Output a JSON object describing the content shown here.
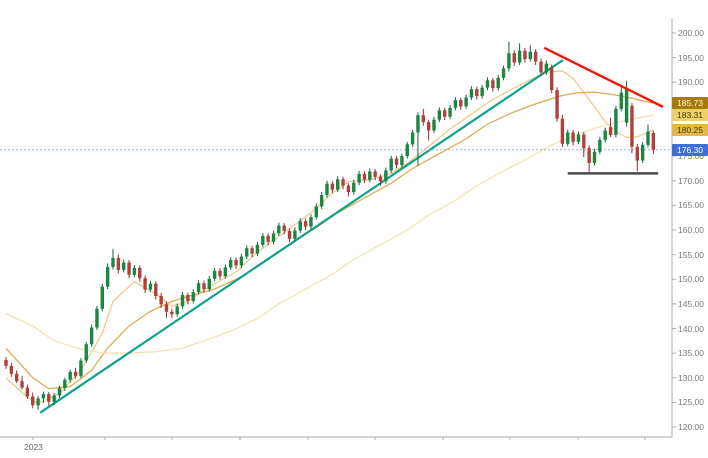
{
  "chart_data": {
    "type": "candlestick",
    "title": "",
    "x_axis": {
      "year_label": "2023"
    },
    "y_axis": {
      "min": 120,
      "max": 200,
      "step": 5,
      "tick_labels": [
        "200.00",
        "195.00",
        "190.00",
        "185.00",
        "180.00",
        "175.00",
        "170.00",
        "165.00",
        "160.00",
        "155.00",
        "150.00",
        "145.00",
        "140.00",
        "135.00",
        "130.00",
        "125.00",
        "120.00"
      ]
    },
    "grid": "off",
    "legend": "none",
    "price_labels": [
      {
        "name": "ma-mid-price-label",
        "value": "185.73",
        "price": 185.73,
        "bg": "#A8790B",
        "fg": "#FFF6E0"
      },
      {
        "name": "ma-slow-price-label",
        "value": "183.31",
        "price": 183.31,
        "bg": "#EDD068",
        "fg": "#4A3A08"
      },
      {
        "name": "ma-fast-price-label",
        "value": "180.25",
        "price": 180.25,
        "bg": "#E3B84B",
        "fg": "#4A3A08"
      },
      {
        "name": "last-price-label",
        "value": "176.30",
        "price": 176.3,
        "bg": "#3D6FD7",
        "fg": "#FFFFFF"
      }
    ],
    "last_price": 176.3,
    "colors": {
      "up": "#1B8644",
      "up_wick": "#156636",
      "down": "#B0413A",
      "down_wick": "#8F2F28",
      "trend_up": "#0FA18A",
      "trend_down": "#F2150A",
      "support": "#4A4A4A",
      "last_price_line": "#8FB4E3",
      "axis": "#ABABAB",
      "tick_text": "#7A7A7A",
      "ma_fast": "#ECC882",
      "ma_mid": "#DBA94A",
      "ma_slow": "#F2E0B0"
    },
    "overlays": {
      "trend_up": {
        "from": [
          6.4,
          122.9
        ],
        "to": [
          104.1,
          194.5
        ]
      },
      "trend_down": {
        "from": [
          100.6,
          197.0
        ],
        "to": [
          122.8,
          185.0
        ]
      },
      "support": {
        "from": [
          105,
          171.5
        ],
        "to": [
          121.9,
          171.5
        ]
      },
      "last_price_line": {
        "price": 176.3
      }
    },
    "moving_averages": [
      {
        "name": "ma-fast",
        "color_key": "ma_fast",
        "points": [
          [
            0,
            130
          ],
          [
            4,
            126
          ],
          [
            6,
            124.8
          ],
          [
            10,
            126.8
          ],
          [
            14,
            131.5
          ],
          [
            18,
            139
          ],
          [
            20,
            145.5
          ],
          [
            24,
            149.5
          ],
          [
            28,
            147
          ],
          [
            31,
            144.5
          ],
          [
            34,
            145.5
          ],
          [
            38,
            148.5
          ],
          [
            43,
            151.5
          ],
          [
            47,
            155.5
          ],
          [
            52,
            159.5
          ],
          [
            57,
            163.5
          ],
          [
            61,
            167.5
          ],
          [
            64,
            169.8
          ],
          [
            68,
            170.2
          ],
          [
            72,
            171.5
          ],
          [
            75,
            173.5
          ],
          [
            79,
            177
          ],
          [
            83,
            180.5
          ],
          [
            87,
            183.5
          ],
          [
            90,
            185.8
          ],
          [
            94,
            188.3
          ],
          [
            98,
            190.5
          ],
          [
            101,
            192
          ],
          [
            104,
            192.3
          ],
          [
            106,
            190.8
          ],
          [
            109,
            186.5
          ],
          [
            112,
            182
          ],
          [
            114,
            180
          ],
          [
            116,
            178.8
          ],
          [
            118,
            178.9
          ],
          [
            119,
            179.4
          ],
          [
            121,
            180.25
          ]
        ]
      },
      {
        "name": "ma-mid",
        "color_key": "ma_mid",
        "points": [
          [
            0,
            136
          ],
          [
            5,
            130
          ],
          [
            8,
            127.8
          ],
          [
            12,
            128.2
          ],
          [
            16,
            131.5
          ],
          [
            19,
            136
          ],
          [
            23,
            140.5
          ],
          [
            27,
            143.5
          ],
          [
            31,
            145.5
          ],
          [
            34,
            146.5
          ],
          [
            39,
            148
          ],
          [
            44,
            150.5
          ],
          [
            48,
            153.5
          ],
          [
            53,
            157
          ],
          [
            58,
            160.5
          ],
          [
            62,
            163.5
          ],
          [
            67,
            166.5
          ],
          [
            72,
            169.5
          ],
          [
            76,
            172.5
          ],
          [
            81,
            175.5
          ],
          [
            86,
            178.5
          ],
          [
            90,
            181.5
          ],
          [
            95,
            184
          ],
          [
            100,
            186
          ],
          [
            104,
            187.3
          ],
          [
            107,
            187.9
          ],
          [
            110,
            188
          ],
          [
            113,
            187.6
          ],
          [
            116,
            187
          ],
          [
            118,
            186.5
          ],
          [
            121,
            185.73
          ]
        ]
      },
      {
        "name": "ma-slow",
        "color_key": "ma_slow",
        "points": [
          [
            0,
            143
          ],
          [
            5,
            140.5
          ],
          [
            9,
            137.5
          ],
          [
            14,
            135.8
          ],
          [
            18,
            135
          ],
          [
            23,
            135
          ],
          [
            28,
            135.3
          ],
          [
            33,
            136
          ],
          [
            37,
            137.5
          ],
          [
            42,
            139.5
          ],
          [
            47,
            142
          ],
          [
            51,
            145
          ],
          [
            56,
            148
          ],
          [
            61,
            151
          ],
          [
            65,
            154
          ],
          [
            70,
            157
          ],
          [
            75,
            160
          ],
          [
            79,
            163
          ],
          [
            84,
            166
          ],
          [
            88,
            169
          ],
          [
            93,
            172
          ],
          [
            98,
            174.8
          ],
          [
            102,
            177.3
          ],
          [
            107,
            179.5
          ],
          [
            112,
            181.3
          ],
          [
            117,
            182.5
          ],
          [
            121,
            183.31
          ]
        ]
      }
    ],
    "candles_format": [
      "open",
      "high",
      "low",
      "close"
    ],
    "candles": [
      [
        133.6,
        134.2,
        131.8,
        132.4
      ],
      [
        132.4,
        133.0,
        130.2,
        130.8
      ],
      [
        130.8,
        131.5,
        128.9,
        129.3
      ],
      [
        129.3,
        130.4,
        127.6,
        128.0
      ],
      [
        128.0,
        128.6,
        125.7,
        126.2
      ],
      [
        126.2,
        127.0,
        123.8,
        124.4
      ],
      [
        124.4,
        126.3,
        123.5,
        125.8
      ],
      [
        125.8,
        127.2,
        124.9,
        126.7
      ],
      [
        126.7,
        127.1,
        124.3,
        125.1
      ],
      [
        125.1,
        126.9,
        124.4,
        126.4
      ],
      [
        126.4,
        128.4,
        125.9,
        127.9
      ],
      [
        127.9,
        130.0,
        127.3,
        129.6
      ],
      [
        129.6,
        131.6,
        129.0,
        131.2
      ],
      [
        131.2,
        132.0,
        129.8,
        130.3
      ],
      [
        130.3,
        134.0,
        129.9,
        133.5
      ],
      [
        133.5,
        137.3,
        133.0,
        136.8
      ],
      [
        136.8,
        140.8,
        136.3,
        140.2
      ],
      [
        140.2,
        144.6,
        139.7,
        144.0
      ],
      [
        144.0,
        149.1,
        143.5,
        148.5
      ],
      [
        148.5,
        153.2,
        148.0,
        152.5
      ],
      [
        152.5,
        156.2,
        152.0,
        154.3
      ],
      [
        154.3,
        155.0,
        151.2,
        151.9
      ],
      [
        151.9,
        154.0,
        151.4,
        153.4
      ],
      [
        153.4,
        153.9,
        150.2,
        150.9
      ],
      [
        150.9,
        152.9,
        150.4,
        152.3
      ],
      [
        152.3,
        152.8,
        149.5,
        150.2
      ],
      [
        150.2,
        150.8,
        147.2,
        147.9
      ],
      [
        147.9,
        149.7,
        147.4,
        149.1
      ],
      [
        149.1,
        149.6,
        145.9,
        146.6
      ],
      [
        146.6,
        147.2,
        144.2,
        144.9
      ],
      [
        144.9,
        145.5,
        142.2,
        143.4
      ],
      [
        143.4,
        144.0,
        142.1,
        142.9
      ],
      [
        142.9,
        145.1,
        142.4,
        144.5
      ],
      [
        144.5,
        147.4,
        144.0,
        146.8
      ],
      [
        146.8,
        147.3,
        144.9,
        145.6
      ],
      [
        145.6,
        148.0,
        145.1,
        147.4
      ],
      [
        147.4,
        149.8,
        146.9,
        149.2
      ],
      [
        149.2,
        149.7,
        147.3,
        148.0
      ],
      [
        148.0,
        150.7,
        147.5,
        150.1
      ],
      [
        150.1,
        152.3,
        149.6,
        151.7
      ],
      [
        151.7,
        152.2,
        149.9,
        150.6
      ],
      [
        150.6,
        153.0,
        150.1,
        152.4
      ],
      [
        152.4,
        154.5,
        151.9,
        153.9
      ],
      [
        153.9,
        154.4,
        152.1,
        152.8
      ],
      [
        152.8,
        155.2,
        152.3,
        154.6
      ],
      [
        154.6,
        156.9,
        154.1,
        156.3
      ],
      [
        156.3,
        156.8,
        154.5,
        155.2
      ],
      [
        155.2,
        157.6,
        154.7,
        157.0
      ],
      [
        157.0,
        159.4,
        156.5,
        158.8
      ],
      [
        158.8,
        159.3,
        156.9,
        157.6
      ],
      [
        157.6,
        159.9,
        157.1,
        159.3
      ],
      [
        159.3,
        161.5,
        158.8,
        160.9
      ],
      [
        160.9,
        161.4,
        159.1,
        159.8
      ],
      [
        159.8,
        160.3,
        157.5,
        158.2
      ],
      [
        158.2,
        160.5,
        157.7,
        159.9
      ],
      [
        159.9,
        162.4,
        159.4,
        161.8
      ],
      [
        161.8,
        162.3,
        160.0,
        160.7
      ],
      [
        160.7,
        163.2,
        160.2,
        162.6
      ],
      [
        162.6,
        165.4,
        162.1,
        164.8
      ],
      [
        164.8,
        167.7,
        164.3,
        167.1
      ],
      [
        167.1,
        170.0,
        166.6,
        169.4
      ],
      [
        169.4,
        169.9,
        167.5,
        168.2
      ],
      [
        168.2,
        170.9,
        167.7,
        170.3
      ],
      [
        170.3,
        170.8,
        168.3,
        169.0
      ],
      [
        169.0,
        169.5,
        166.8,
        167.7
      ],
      [
        167.7,
        170.2,
        167.2,
        169.6
      ],
      [
        169.6,
        172.0,
        169.1,
        171.4
      ],
      [
        171.4,
        171.9,
        169.5,
        170.2
      ],
      [
        170.2,
        172.5,
        169.7,
        171.9
      ],
      [
        171.9,
        172.4,
        170.1,
        170.8
      ],
      [
        170.8,
        171.3,
        169.0,
        169.9
      ],
      [
        169.9,
        172.7,
        169.4,
        172.1
      ],
      [
        172.1,
        175.1,
        171.6,
        174.5
      ],
      [
        174.5,
        175.0,
        172.5,
        173.2
      ],
      [
        173.2,
        175.5,
        172.7,
        175.0
      ],
      [
        175.0,
        177.9,
        174.5,
        177.4
      ],
      [
        177.4,
        180.3,
        176.9,
        179.8
      ],
      [
        179.8,
        183.9,
        173.0,
        183.3
      ],
      [
        183.3,
        184.6,
        181.2,
        181.9
      ],
      [
        181.9,
        182.4,
        178.2,
        180.2
      ],
      [
        180.2,
        183.0,
        179.7,
        182.4
      ],
      [
        182.4,
        184.9,
        181.9,
        184.3
      ],
      [
        184.3,
        184.8,
        182.3,
        183.0
      ],
      [
        183.0,
        185.4,
        182.5,
        184.8
      ],
      [
        184.8,
        187.0,
        184.3,
        186.4
      ],
      [
        186.4,
        186.9,
        184.4,
        185.1
      ],
      [
        185.1,
        187.5,
        184.6,
        186.9
      ],
      [
        186.9,
        189.2,
        186.4,
        188.6
      ],
      [
        188.6,
        189.1,
        186.5,
        187.2
      ],
      [
        187.2,
        189.5,
        186.7,
        188.9
      ],
      [
        188.9,
        191.0,
        188.4,
        190.4
      ],
      [
        190.4,
        190.9,
        188.1,
        188.8
      ],
      [
        188.8,
        191.5,
        188.3,
        190.9
      ],
      [
        190.9,
        193.4,
        190.4,
        192.8
      ],
      [
        192.8,
        198.2,
        192.2,
        195.9
      ],
      [
        195.9,
        196.5,
        193.3,
        194.0
      ],
      [
        194.0,
        197.9,
        193.5,
        196.4
      ],
      [
        196.4,
        196.9,
        194.0,
        194.7
      ],
      [
        194.7,
        197.5,
        194.2,
        196.2
      ],
      [
        196.2,
        196.7,
        193.5,
        194.2
      ],
      [
        194.2,
        194.8,
        191.3,
        192.0
      ],
      [
        192.0,
        194.4,
        191.5,
        193.8
      ],
      [
        193.0,
        193.6,
        187.8,
        188.4
      ],
      [
        188.4,
        189.0,
        182.0,
        182.6
      ],
      [
        182.6,
        183.4,
        176.9,
        177.5
      ],
      [
        177.5,
        180.4,
        177.0,
        179.8
      ],
      [
        179.8,
        180.3,
        177.2,
        177.9
      ],
      [
        177.9,
        180.0,
        177.4,
        179.4
      ],
      [
        179.4,
        179.9,
        174.8,
        176.6
      ],
      [
        176.6,
        177.2,
        171.7,
        173.6
      ],
      [
        173.6,
        176.5,
        173.1,
        175.9
      ],
      [
        175.9,
        178.9,
        175.4,
        178.3
      ],
      [
        178.3,
        180.8,
        177.8,
        180.2
      ],
      [
        180.9,
        182.8,
        178.9,
        179.3
      ],
      [
        179.3,
        185.2,
        178.8,
        184.6
      ],
      [
        184.6,
        189.0,
        184.1,
        187.9
      ],
      [
        181.8,
        190.3,
        181.0,
        188.8
      ],
      [
        185.2,
        185.8,
        175.6,
        176.9
      ],
      [
        176.9,
        177.5,
        171.9,
        174.1
      ],
      [
        174.1,
        177.9,
        173.6,
        177.3
      ],
      [
        177.3,
        181.4,
        176.8,
        180.0
      ],
      [
        179.7,
        180.2,
        175.4,
        176.3
      ]
    ]
  }
}
